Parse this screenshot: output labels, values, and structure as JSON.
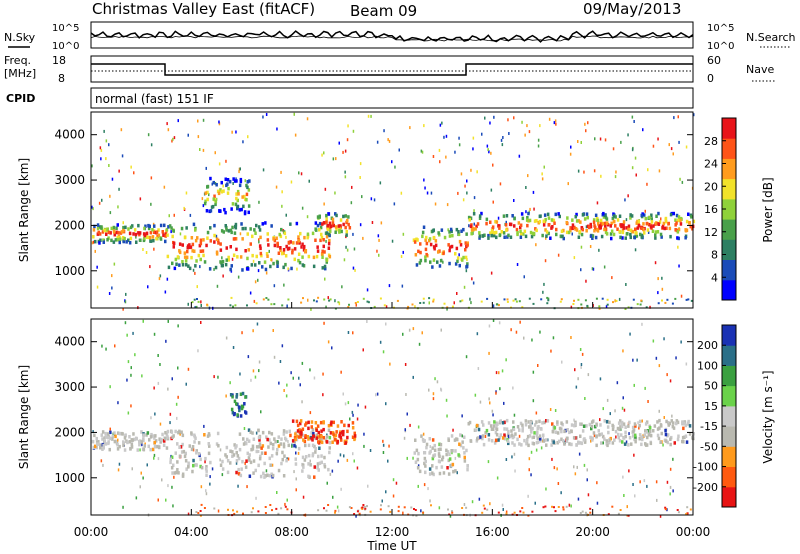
{
  "header": {
    "station": "Christmas Valley East (fitACF)",
    "beam": "Beam 09",
    "date": "09/May/2013"
  },
  "summary_panels": {
    "nsky_label": "N.Sky",
    "nsearch_label": "N.Search",
    "noise_ticks": [
      "10^5",
      "10^0"
    ],
    "freq_label": [
      "Freq.",
      "[MHz]"
    ],
    "freq_ticks": [
      "18",
      "8"
    ],
    "nave_label": "Nave",
    "nave_ticks": [
      "60",
      "0"
    ],
    "cpid_label": "CPID",
    "cpid_value": "normal (fast) 151 IF"
  },
  "chart_data": [
    {
      "type": "heatmap",
      "name": "power",
      "ylabel": "Slant Range [km]",
      "ylim": [
        180,
        4500
      ],
      "yticks": [
        "1000",
        "2000",
        "3000",
        "4000"
      ],
      "colorbar": {
        "label": "Power [dB]",
        "ticks": [
          "28",
          "24",
          "20",
          "16",
          "12",
          "8",
          "4"
        ],
        "colors": [
          "#0000ff",
          "#1a4bb8",
          "#2d7f62",
          "#49a04a",
          "#8fd13a",
          "#f2e22a",
          "#ff9c1e",
          "#ff5418",
          "#e8141a"
        ]
      },
      "echo_bands": [
        {
          "t": [
            0.0,
            3.0
          ],
          "range": [
            1650,
            2050
          ],
          "level": "high"
        },
        {
          "t": [
            3.0,
            9.5
          ],
          "range": [
            1050,
            2100
          ],
          "level": "high"
        },
        {
          "t": [
            4.5,
            6.3
          ],
          "range": [
            2300,
            3100
          ],
          "level": "medium"
        },
        {
          "t": [
            9.0,
            10.3
          ],
          "range": [
            1800,
            2300
          ],
          "level": "high"
        },
        {
          "t": [
            12.8,
            15.0
          ],
          "range": [
            1100,
            2000
          ],
          "level": "high"
        },
        {
          "t": [
            15.0,
            24.0
          ],
          "range": [
            1750,
            2300
          ],
          "level": "high"
        }
      ]
    },
    {
      "type": "heatmap",
      "name": "velocity",
      "xlabel": "Time UT",
      "ylabel": "Slant Range [km]",
      "ylim": [
        180,
        4500
      ],
      "yticks": [
        "1000",
        "2000",
        "3000",
        "4000"
      ],
      "xticks": [
        "00:00",
        "04:00",
        "08:00",
        "12:00",
        "16:00",
        "20:00",
        "00:00"
      ],
      "colorbar": {
        "label": "Velocity [m s⁻¹]",
        "ticks": [
          "200",
          "100",
          "50",
          "15",
          "-15",
          "-50",
          "-100",
          "-200"
        ],
        "colors": [
          "#e81414",
          "#ff5a10",
          "#ff9a1c",
          "#b9b9b0",
          "#c9c9c9",
          "#6ad24a",
          "#3aa040",
          "#2a6f88",
          "#1a32b4"
        ]
      },
      "echo_bands": [
        {
          "t": [
            0.0,
            3.0
          ],
          "range": [
            1650,
            2050
          ],
          "class": "ground-scatter"
        },
        {
          "t": [
            3.0,
            9.5
          ],
          "range": [
            1050,
            2100
          ],
          "class": "ground-scatter"
        },
        {
          "t": [
            5.5,
            6.2
          ],
          "range": [
            2400,
            2900
          ],
          "class": "positive"
        },
        {
          "t": [
            8.0,
            10.5
          ],
          "range": [
            1800,
            2300
          ],
          "class": "negative"
        },
        {
          "t": [
            12.8,
            15.0
          ],
          "range": [
            1100,
            2000
          ],
          "class": "ground-scatter"
        },
        {
          "t": [
            15.0,
            24.0
          ],
          "range": [
            1750,
            2300
          ],
          "class": "ground-scatter"
        }
      ]
    }
  ]
}
